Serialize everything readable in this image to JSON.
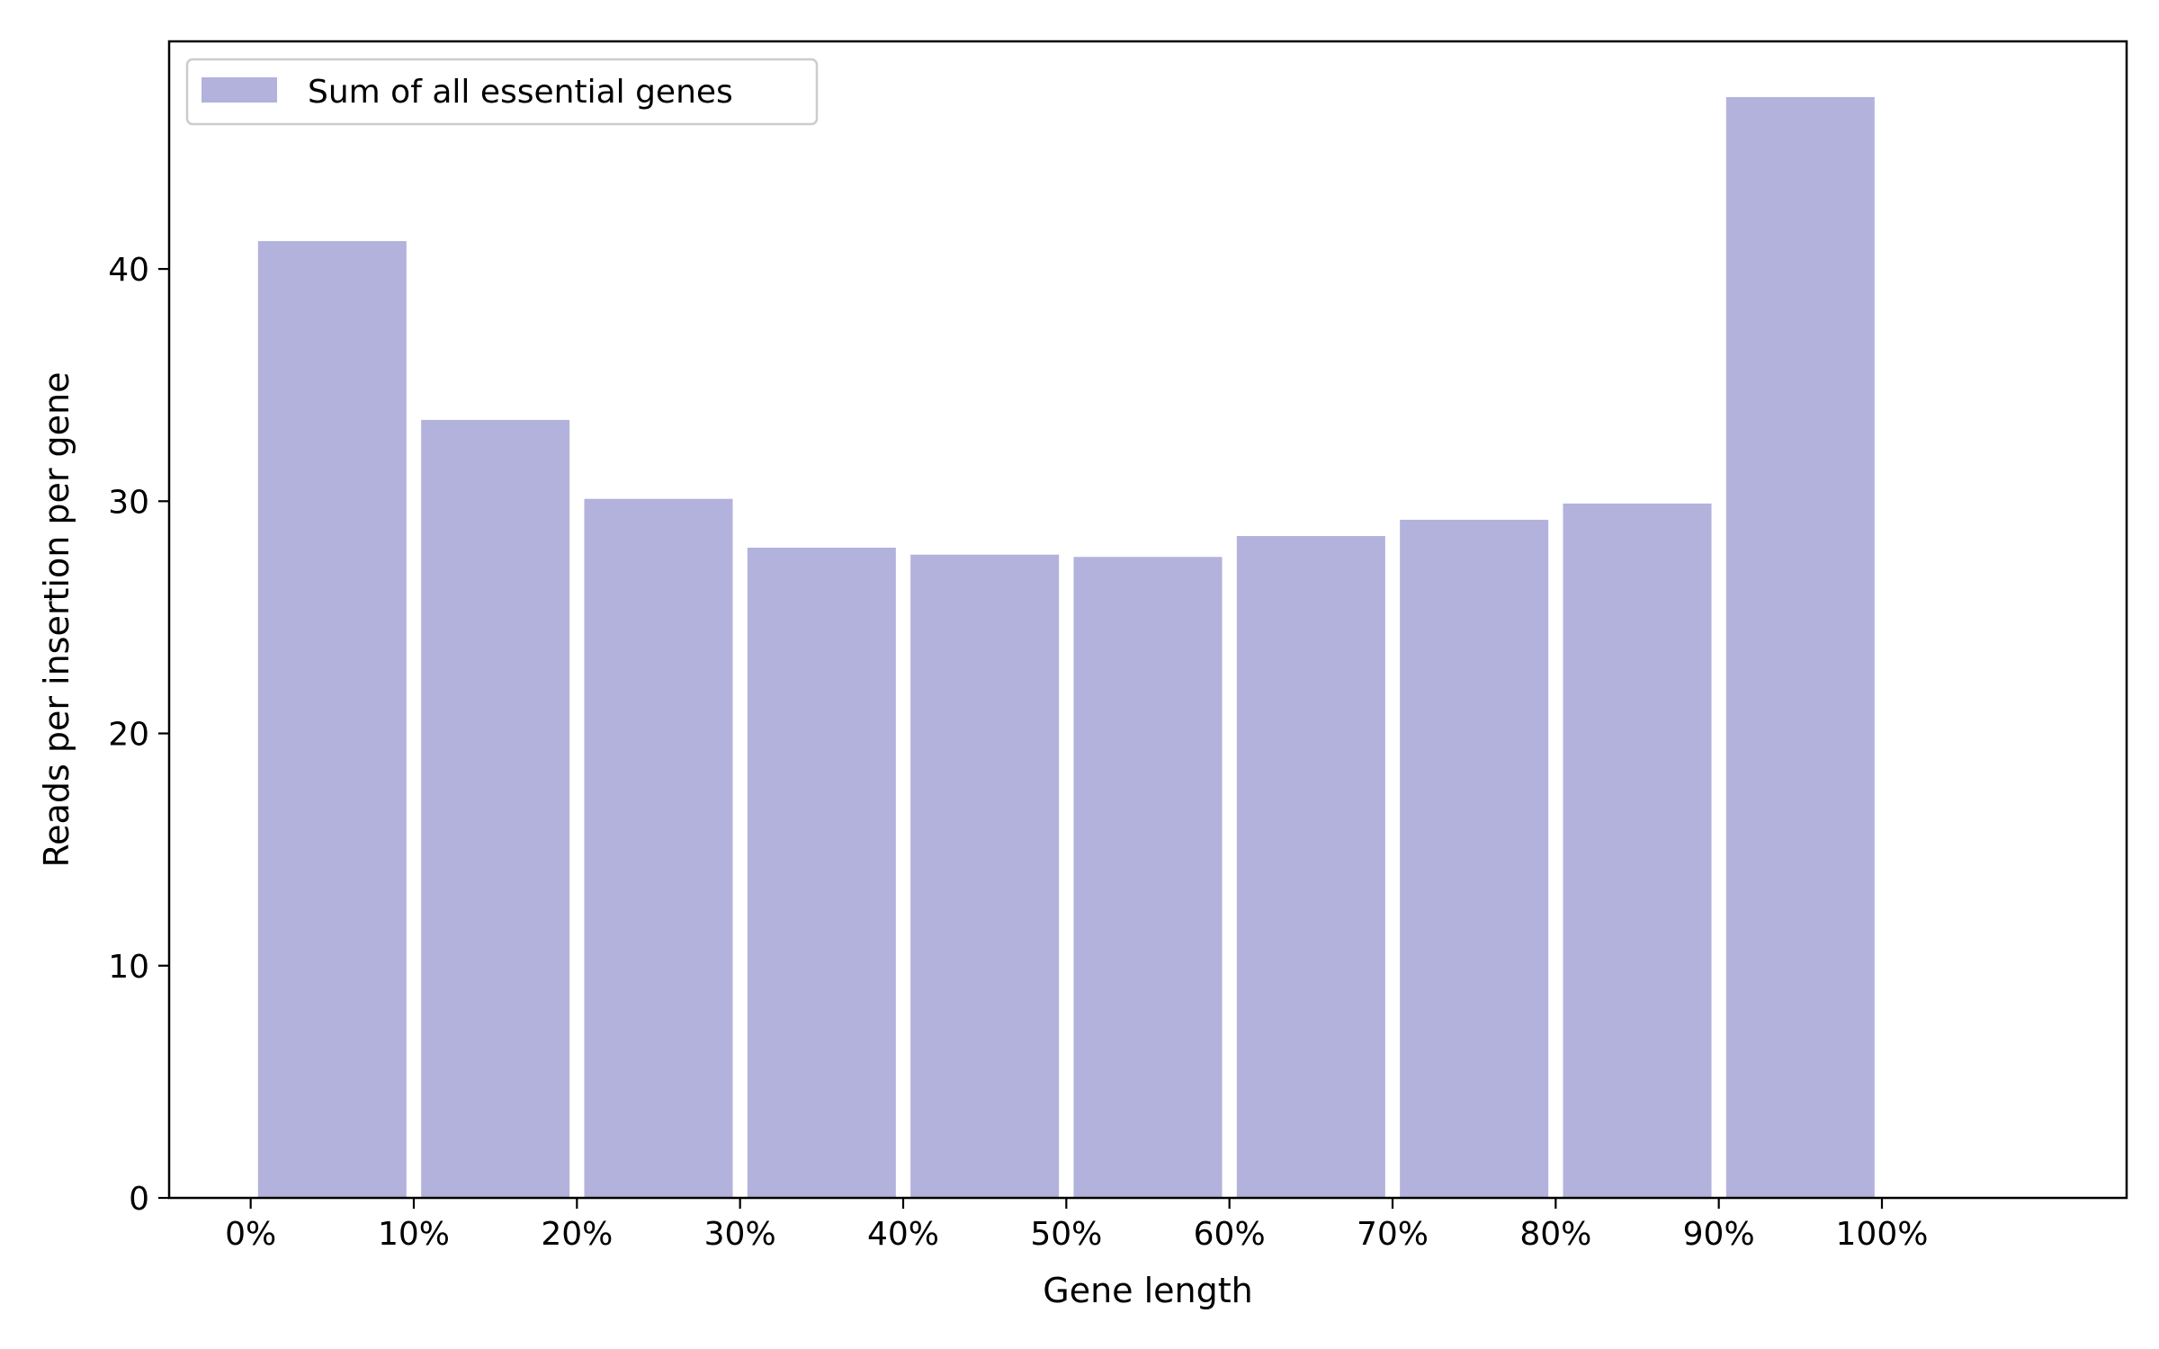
{
  "chart_data": {
    "type": "bar",
    "title": "",
    "xlabel": "Gene length",
    "ylabel": "Reads per insertion per gene",
    "bin_edges": [
      0,
      10,
      20,
      30,
      40,
      50,
      60,
      70,
      80,
      90,
      100
    ],
    "bin_width": 10,
    "xlim": [
      -5,
      115
    ],
    "ylim": [
      0,
      49.8
    ],
    "x_ticks": [
      {
        "value": 0,
        "label": "0%"
      },
      {
        "value": 10,
        "label": "10%"
      },
      {
        "value": 20,
        "label": "20%"
      },
      {
        "value": 30,
        "label": "30%"
      },
      {
        "value": 40,
        "label": "40%"
      },
      {
        "value": 50,
        "label": "50%"
      },
      {
        "value": 60,
        "label": "60%"
      },
      {
        "value": 70,
        "label": "70%"
      },
      {
        "value": 80,
        "label": "80%"
      },
      {
        "value": 90,
        "label": "90%"
      },
      {
        "value": 100,
        "label": "100%"
      }
    ],
    "y_ticks": [
      {
        "value": 0,
        "label": "0"
      },
      {
        "value": 10,
        "label": "10"
      },
      {
        "value": 20,
        "label": "20"
      },
      {
        "value": 30,
        "label": "30"
      },
      {
        "value": 40,
        "label": "40"
      }
    ],
    "series": [
      {
        "name": "Sum of all essential genes",
        "color": "#b2b2dc",
        "values": [
          41.2,
          33.5,
          30.1,
          28.0,
          27.7,
          27.6,
          28.5,
          29.2,
          29.9,
          47.4
        ]
      }
    ],
    "grid": false,
    "legend_position": "upper-left"
  }
}
